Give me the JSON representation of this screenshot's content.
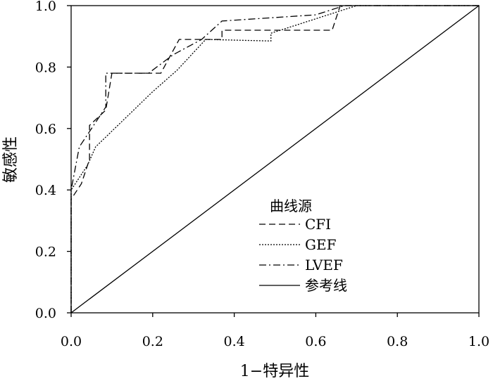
{
  "chart_data": {
    "type": "line",
    "title": "",
    "xlabel": "1−特异性",
    "ylabel": "敏感性",
    "xlim": [
      0,
      1
    ],
    "ylim": [
      0,
      1
    ],
    "x_ticks": [
      "0.0",
      "0.2",
      "0.4",
      "0.6",
      "0.8",
      "1.0"
    ],
    "y_ticks": [
      "0.0",
      "0.2",
      "0.4",
      "0.6",
      "0.8",
      "1.0"
    ],
    "grid": false,
    "legend_title": "曲线源",
    "legend_position": "bottom-right",
    "series": [
      {
        "name": "CFI",
        "dash": "9,5",
        "points": [
          [
            0,
            0
          ],
          [
            0,
            0.37
          ],
          [
            0.025,
            0.42
          ],
          [
            0.045,
            0.5
          ],
          [
            0.045,
            0.61
          ],
          [
            0.085,
            0.66
          ],
          [
            0.1,
            0.78
          ],
          [
            0.22,
            0.78
          ],
          [
            0.265,
            0.89
          ],
          [
            0.37,
            0.89
          ],
          [
            0.37,
            0.92
          ],
          [
            0.64,
            0.92
          ],
          [
            0.66,
            1.0
          ],
          [
            1.0,
            1.0
          ]
        ]
      },
      {
        "name": "GEF",
        "dash": "2,2",
        "points": [
          [
            0,
            0
          ],
          [
            0,
            0.4
          ],
          [
            0.04,
            0.48
          ],
          [
            0.06,
            0.54
          ],
          [
            0.13,
            0.63
          ],
          [
            0.2,
            0.72
          ],
          [
            0.26,
            0.79
          ],
          [
            0.33,
            0.89
          ],
          [
            0.49,
            0.885
          ],
          [
            0.49,
            0.91
          ],
          [
            0.63,
            0.97
          ],
          [
            0.7,
            1.0
          ],
          [
            1.0,
            1.0
          ]
        ]
      },
      {
        "name": "LVEF",
        "dash": "10,4,2,4",
        "points": [
          [
            0,
            0
          ],
          [
            0,
            0.4
          ],
          [
            0.02,
            0.54
          ],
          [
            0.045,
            0.59
          ],
          [
            0.085,
            0.67
          ],
          [
            0.085,
            0.78
          ],
          [
            0.19,
            0.78
          ],
          [
            0.25,
            0.84
          ],
          [
            0.32,
            0.89
          ],
          [
            0.37,
            0.95
          ],
          [
            0.6,
            0.97
          ],
          [
            0.67,
            1.0
          ],
          [
            1.0,
            1.0
          ]
        ]
      },
      {
        "name": "参考线",
        "dash": "",
        "points": [
          [
            0,
            0
          ],
          [
            1,
            1
          ]
        ]
      }
    ]
  }
}
